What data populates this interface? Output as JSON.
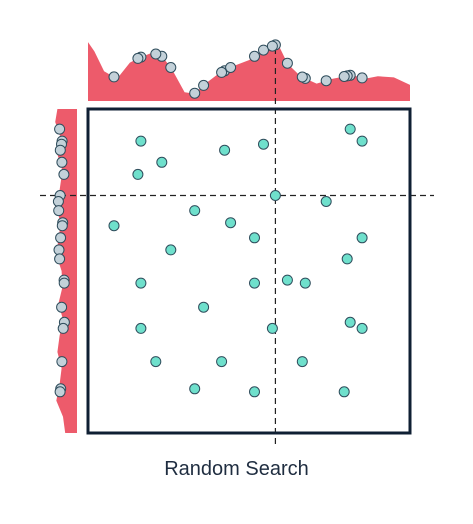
{
  "caption": "Random Search",
  "colors": {
    "box": "#0f1f33",
    "distribution": "#ed5b6b",
    "sample_fill": "#6fe0cc",
    "sample_stroke": "#2f4d5c",
    "projection_fill": "#c3d1d9",
    "crosshair": "#222222"
  },
  "chart_data": {
    "type": "scatter",
    "xlim": [
      0,
      1
    ],
    "ylim": [
      0,
      1
    ],
    "grid": false,
    "legend": "none",
    "optimum": {
      "x": 0.59,
      "y": 0.75
    },
    "samples": [
      {
        "x": 0.84,
        "y": 0.97
      },
      {
        "x": 0.88,
        "y": 0.93
      },
      {
        "x": 0.14,
        "y": 0.93
      },
      {
        "x": 0.55,
        "y": 0.92
      },
      {
        "x": 0.42,
        "y": 0.9
      },
      {
        "x": 0.21,
        "y": 0.86
      },
      {
        "x": 0.13,
        "y": 0.82
      },
      {
        "x": 0.59,
        "y": 0.75
      },
      {
        "x": 0.76,
        "y": 0.73
      },
      {
        "x": 0.32,
        "y": 0.7
      },
      {
        "x": 0.44,
        "y": 0.66
      },
      {
        "x": 0.05,
        "y": 0.65
      },
      {
        "x": 0.52,
        "y": 0.61
      },
      {
        "x": 0.88,
        "y": 0.61
      },
      {
        "x": 0.24,
        "y": 0.57
      },
      {
        "x": 0.83,
        "y": 0.54
      },
      {
        "x": 0.63,
        "y": 0.47
      },
      {
        "x": 0.14,
        "y": 0.46
      },
      {
        "x": 0.52,
        "y": 0.46
      },
      {
        "x": 0.69,
        "y": 0.46
      },
      {
        "x": 0.35,
        "y": 0.38
      },
      {
        "x": 0.84,
        "y": 0.33
      },
      {
        "x": 0.14,
        "y": 0.31
      },
      {
        "x": 0.58,
        "y": 0.31
      },
      {
        "x": 0.88,
        "y": 0.31
      },
      {
        "x": 0.19,
        "y": 0.2
      },
      {
        "x": 0.41,
        "y": 0.2
      },
      {
        "x": 0.68,
        "y": 0.2
      },
      {
        "x": 0.32,
        "y": 0.11
      },
      {
        "x": 0.52,
        "y": 0.1
      },
      {
        "x": 0.82,
        "y": 0.1
      }
    ],
    "top_distribution": [
      {
        "x": 0.0,
        "y": 0.95
      },
      {
        "x": 0.02,
        "y": 0.8
      },
      {
        "x": 0.05,
        "y": 0.48
      },
      {
        "x": 0.09,
        "y": 0.36
      },
      {
        "x": 0.13,
        "y": 0.62
      },
      {
        "x": 0.16,
        "y": 0.7
      },
      {
        "x": 0.2,
        "y": 0.78
      },
      {
        "x": 0.23,
        "y": 0.72
      },
      {
        "x": 0.26,
        "y": 0.52
      },
      {
        "x": 0.3,
        "y": 0.14
      },
      {
        "x": 0.33,
        "y": 0.12
      },
      {
        "x": 0.37,
        "y": 0.3
      },
      {
        "x": 0.4,
        "y": 0.42
      },
      {
        "x": 0.45,
        "y": 0.56
      },
      {
        "x": 0.5,
        "y": 0.66
      },
      {
        "x": 0.55,
        "y": 0.84
      },
      {
        "x": 0.59,
        "y": 0.92
      },
      {
        "x": 0.62,
        "y": 0.6
      },
      {
        "x": 0.66,
        "y": 0.4
      },
      {
        "x": 0.71,
        "y": 0.28
      },
      {
        "x": 0.76,
        "y": 0.36
      },
      {
        "x": 0.82,
        "y": 0.42
      },
      {
        "x": 0.86,
        "y": 0.36
      },
      {
        "x": 0.9,
        "y": 0.4
      },
      {
        "x": 0.95,
        "y": 0.38
      },
      {
        "x": 1.0,
        "y": 0.26
      }
    ],
    "left_distribution": [
      {
        "y": 1.0,
        "v": 0.7
      },
      {
        "y": 0.96,
        "v": 0.78
      },
      {
        "y": 0.91,
        "v": 0.58
      },
      {
        "y": 0.86,
        "v": 0.7
      },
      {
        "y": 0.81,
        "v": 0.52
      },
      {
        "y": 0.75,
        "v": 0.62
      },
      {
        "y": 0.7,
        "v": 0.78
      },
      {
        "y": 0.65,
        "v": 0.58
      },
      {
        "y": 0.6,
        "v": 0.66
      },
      {
        "y": 0.55,
        "v": 0.74
      },
      {
        "y": 0.5,
        "v": 0.55
      },
      {
        "y": 0.45,
        "v": 0.52
      },
      {
        "y": 0.4,
        "v": 0.66
      },
      {
        "y": 0.35,
        "v": 0.5
      },
      {
        "y": 0.3,
        "v": 0.62
      },
      {
        "y": 0.25,
        "v": 0.7
      },
      {
        "y": 0.2,
        "v": 0.55
      },
      {
        "y": 0.15,
        "v": 0.62
      },
      {
        "y": 0.1,
        "v": 0.74
      },
      {
        "y": 0.05,
        "v": 0.5
      },
      {
        "y": 0.0,
        "v": 0.42
      }
    ]
  }
}
